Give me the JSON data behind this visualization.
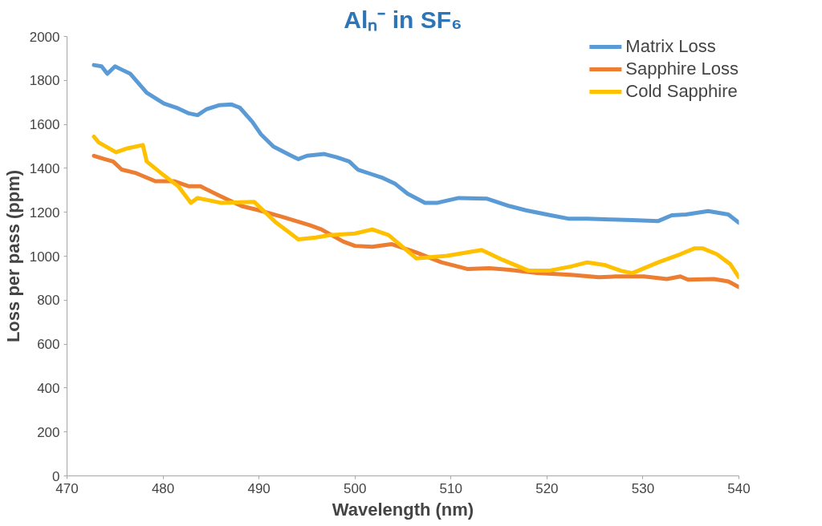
{
  "chart_data": {
    "type": "line",
    "title": "Alₙ⁻ in SF₆",
    "xlabel": "Wavelength (nm)",
    "ylabel": "Loss per pass (ppm)",
    "xlim": [
      470,
      540
    ],
    "ylim": [
      0,
      2000
    ],
    "xticks": [
      470,
      480,
      490,
      500,
      510,
      520,
      530,
      540
    ],
    "yticks": [
      0,
      200,
      400,
      600,
      800,
      1000,
      1200,
      1400,
      1600,
      1800,
      2000
    ],
    "grid": false,
    "legend": "top right",
    "marker": "none",
    "line_style": "solid",
    "series": [
      {
        "name": "Matrix Loss",
        "color": "#5b9bd5",
        "x": [
          472.8,
          473.6,
          474.2,
          475.0,
          475.7,
          476.6,
          478.3,
          480.1,
          481.4,
          482.7,
          483.6,
          484.5,
          485.8,
          487.1,
          488.0,
          489.3,
          490.2,
          491.5,
          493.2,
          494.1,
          495.0,
          496.8,
          498.1,
          499.4,
          500.3,
          501.6,
          502.9,
          504.2,
          505.5,
          507.3,
          508.6,
          510.8,
          513.7,
          516.1,
          517.8,
          520.4,
          522.2,
          524.2,
          526.6,
          528.9,
          531.6,
          533.0,
          534.5,
          536.8,
          538.9,
          540.0
        ],
        "values": [
          1870,
          1864,
          1830,
          1864,
          1849,
          1830,
          1744,
          1695,
          1676,
          1650,
          1642,
          1668,
          1687,
          1691,
          1676,
          1612,
          1555,
          1499,
          1461,
          1442,
          1457,
          1465,
          1450,
          1431,
          1394,
          1375,
          1356,
          1329,
          1284,
          1243,
          1243,
          1265,
          1262,
          1228,
          1209,
          1186,
          1171,
          1171,
          1167,
          1164,
          1160,
          1186,
          1190,
          1205,
          1190,
          1152
        ]
      },
      {
        "name": "Sapphire Loss",
        "color": "#ed7d31",
        "x": [
          472.8,
          473.9,
          474.8,
          475.7,
          477.2,
          479.2,
          481.2,
          482.7,
          483.9,
          486.0,
          488.2,
          490.0,
          492.4,
          495.3,
          496.5,
          498.8,
          500.0,
          501.8,
          503.8,
          506.4,
          509.0,
          511.7,
          514.0,
          516.1,
          519.0,
          522.5,
          525.4,
          527.2,
          530.1,
          532.5,
          533.9,
          534.7,
          537.4,
          538.9,
          540.0
        ],
        "values": [
          1457,
          1442,
          1431,
          1394,
          1378,
          1341,
          1341,
          1318,
          1318,
          1273,
          1228,
          1209,
          1179,
          1141,
          1122,
          1066,
          1047,
          1043,
          1055,
          1017,
          972,
          942,
          945,
          938,
          923,
          915,
          904,
          908,
          908,
          896,
          908,
          893,
          896,
          885,
          859
        ]
      },
      {
        "name": "Cold Sapphire",
        "color": "#ffc000",
        "x": [
          472.8,
          473.3,
          475.1,
          476.3,
          477.9,
          478.3,
          479.8,
          481.6,
          482.9,
          483.6,
          486.0,
          489.5,
          491.8,
          494.1,
          495.9,
          497.4,
          500.0,
          501.8,
          503.5,
          506.4,
          509.6,
          513.2,
          515.4,
          518.1,
          520.2,
          522.5,
          524.2,
          526.0,
          527.7,
          528.9,
          531.6,
          533.9,
          535.4,
          536.2,
          537.7,
          539.1,
          540.0
        ],
        "values": [
          1544,
          1518,
          1473,
          1491,
          1506,
          1431,
          1378,
          1318,
          1243,
          1265,
          1243,
          1247,
          1152,
          1077,
          1085,
          1096,
          1103,
          1122,
          1096,
          990,
          1002,
          1028,
          983,
          934,
          934,
          953,
          972,
          960,
          934,
          923,
          972,
          1009,
          1036,
          1036,
          1009,
          964,
          904
        ]
      }
    ]
  }
}
